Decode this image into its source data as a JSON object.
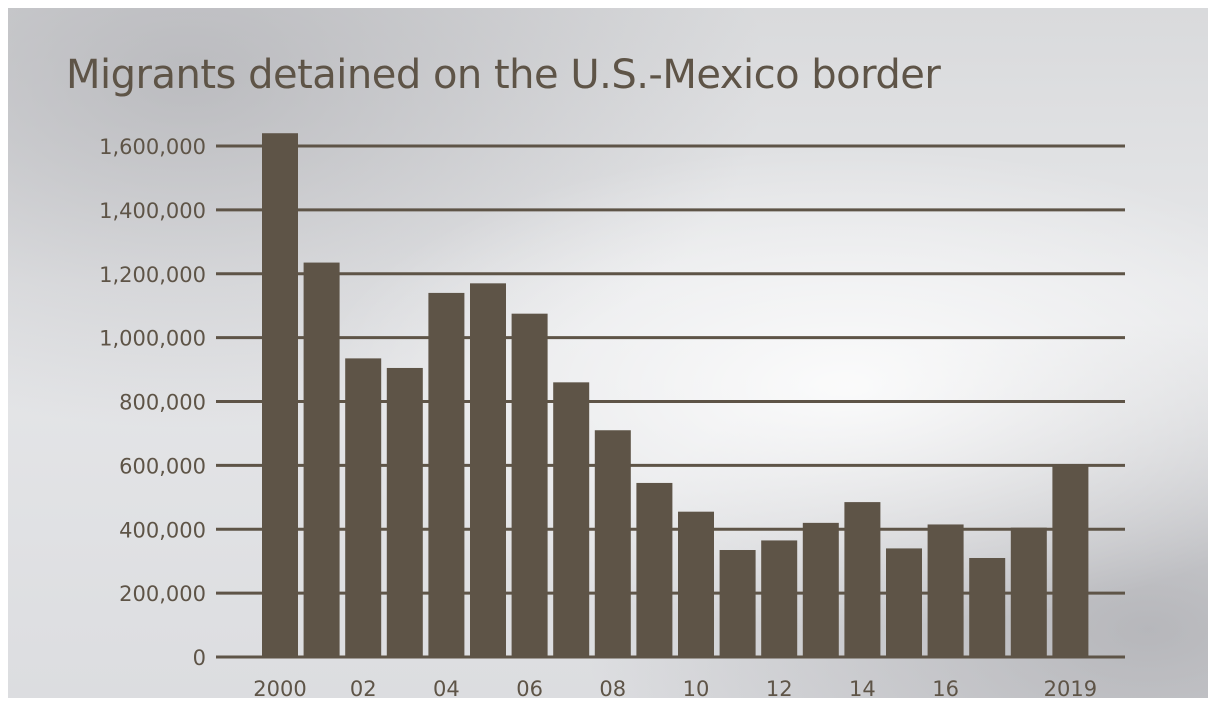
{
  "chart_data": {
    "type": "bar",
    "title": "Migrants detained on the U.S.-Mexico border",
    "xlabel": "",
    "ylabel": "",
    "categories": [
      "2000",
      "2001",
      "2002",
      "2003",
      "2004",
      "2005",
      "2006",
      "2007",
      "2008",
      "2009",
      "2010",
      "2011",
      "2012",
      "2013",
      "2014",
      "2015",
      "2016",
      "2017",
      "2018",
      "2019"
    ],
    "values": [
      1640000,
      1235000,
      935000,
      905000,
      1140000,
      1170000,
      1075000,
      860000,
      710000,
      545000,
      455000,
      335000,
      365000,
      420000,
      485000,
      340000,
      415000,
      310000,
      405000,
      600000
    ],
    "x_tick_labels": [
      "2000",
      "",
      "02",
      "",
      "04",
      "",
      "06",
      "",
      "08",
      "",
      "10",
      "",
      "12",
      "",
      "14",
      "",
      "16",
      "",
      "",
      "2019"
    ],
    "y_ticks": [
      0,
      200000,
      400000,
      600000,
      800000,
      1000000,
      1200000,
      1400000,
      1600000
    ],
    "y_tick_labels": [
      "0",
      "200,000",
      "400,000",
      "600,000",
      "800,000",
      "1,000,000",
      "1,200,000",
      "1,400,000",
      "1,600,000"
    ],
    "ylim": [
      0,
      1600000
    ],
    "grid": true,
    "colors": {
      "bar": "#5e5447",
      "grid": "#5e5447",
      "text": "#5e5447"
    }
  }
}
